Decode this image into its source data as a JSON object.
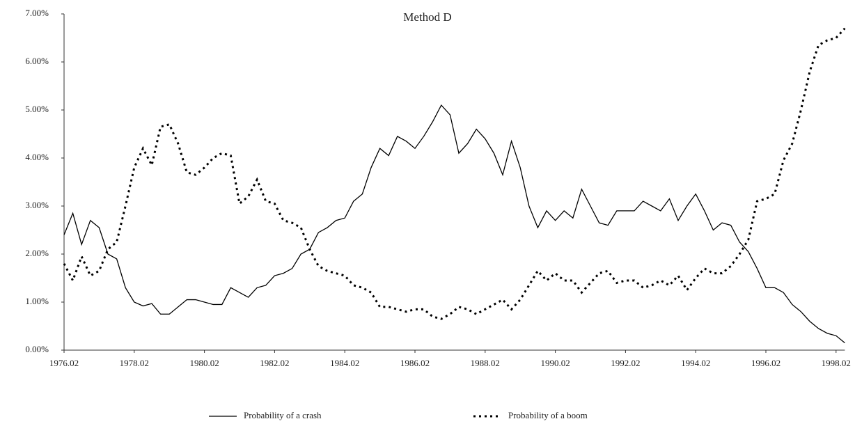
{
  "chart_data": {
    "type": "line",
    "title": "Method D",
    "categories": [
      "1976.02",
      null,
      null,
      null,
      null,
      null,
      null,
      null,
      "1978.02",
      null,
      null,
      null,
      null,
      null,
      null,
      null,
      "1980.02",
      null,
      null,
      null,
      null,
      null,
      null,
      null,
      "1982.02",
      null,
      null,
      null,
      null,
      null,
      null,
      null,
      "1984.02",
      null,
      null,
      null,
      null,
      null,
      null,
      null,
      "1986.02",
      null,
      null,
      null,
      null,
      null,
      null,
      null,
      "1988.02",
      null,
      null,
      null,
      null,
      null,
      null,
      null,
      "1990.02",
      null,
      null,
      null,
      null,
      null,
      null,
      null,
      "1992.02",
      null,
      null,
      null,
      null,
      null,
      null,
      null,
      "1994.02",
      null,
      null,
      null,
      null,
      null,
      null,
      null,
      "1996.02",
      null,
      null,
      null,
      null,
      null,
      null,
      null,
      "1998.02",
      null
    ],
    "series": [
      {
        "name": "Probability of a crash",
        "color": "#000000",
        "dash": "solid",
        "values": [
          2.4,
          2.85,
          2.2,
          2.7,
          2.55,
          2.0,
          1.9,
          1.3,
          1.0,
          0.92,
          0.97,
          0.75,
          0.75,
          0.9,
          1.05,
          1.05,
          1.0,
          0.95,
          0.95,
          1.3,
          1.2,
          1.1,
          1.3,
          1.35,
          1.55,
          1.6,
          1.7,
          2.0,
          2.1,
          2.45,
          2.55,
          2.7,
          2.75,
          3.1,
          3.25,
          3.8,
          4.2,
          4.05,
          4.45,
          4.35,
          4.2,
          4.45,
          4.75,
          5.1,
          4.9,
          4.1,
          4.3,
          4.6,
          4.4,
          4.1,
          3.65,
          4.35,
          3.8,
          3.0,
          2.55,
          2.9,
          2.7,
          2.9,
          2.75,
          3.35,
          3.0,
          2.65,
          2.6,
          2.9,
          2.9,
          2.9,
          3.1,
          3.0,
          2.9,
          3.15,
          2.7,
          3.0,
          3.25,
          2.9,
          2.5,
          2.65,
          2.6,
          2.25,
          2.05,
          1.7,
          1.3,
          1.3,
          1.2,
          0.95,
          0.8,
          0.6,
          0.45,
          0.35,
          0.3,
          0.15
        ]
      },
      {
        "name": "Probability of a boom",
        "color": "#000000",
        "dash": "dotted",
        "values": [
          1.8,
          1.45,
          1.95,
          1.55,
          1.65,
          2.1,
          2.25,
          3.0,
          3.8,
          4.2,
          3.85,
          4.65,
          4.7,
          4.3,
          3.7,
          3.65,
          3.8,
          4.0,
          4.1,
          4.05,
          3.05,
          3.2,
          3.55,
          3.1,
          3.05,
          2.7,
          2.65,
          2.55,
          2.1,
          1.75,
          1.65,
          1.6,
          1.55,
          1.35,
          1.3,
          1.2,
          0.9,
          0.9,
          0.85,
          0.8,
          0.85,
          0.85,
          0.7,
          0.65,
          0.75,
          0.9,
          0.85,
          0.75,
          0.85,
          0.95,
          1.05,
          0.85,
          1.05,
          1.35,
          1.65,
          1.45,
          1.6,
          1.45,
          1.45,
          1.2,
          1.4,
          1.6,
          1.65,
          1.4,
          1.45,
          1.45,
          1.3,
          1.35,
          1.45,
          1.35,
          1.55,
          1.25,
          1.5,
          1.7,
          1.6,
          1.6,
          1.75,
          2.0,
          2.3,
          3.1,
          3.15,
          3.25,
          3.95,
          4.3,
          5.0,
          5.8,
          6.35,
          6.45,
          6.5,
          6.7
        ]
      }
    ],
    "ylim": [
      0,
      7
    ],
    "yticks": [
      {
        "value": 0,
        "label": "0.00%"
      },
      {
        "value": 1,
        "label": "1.00%"
      },
      {
        "value": 2,
        "label": "2.00%"
      },
      {
        "value": 3,
        "label": "3.00%"
      },
      {
        "value": 4,
        "label": "4.00%"
      },
      {
        "value": 5,
        "label": "5.00%"
      },
      {
        "value": 6,
        "label": "6.00%"
      },
      {
        "value": 7,
        "label": "7.00%"
      }
    ],
    "grid": false,
    "legend": "bottom"
  }
}
